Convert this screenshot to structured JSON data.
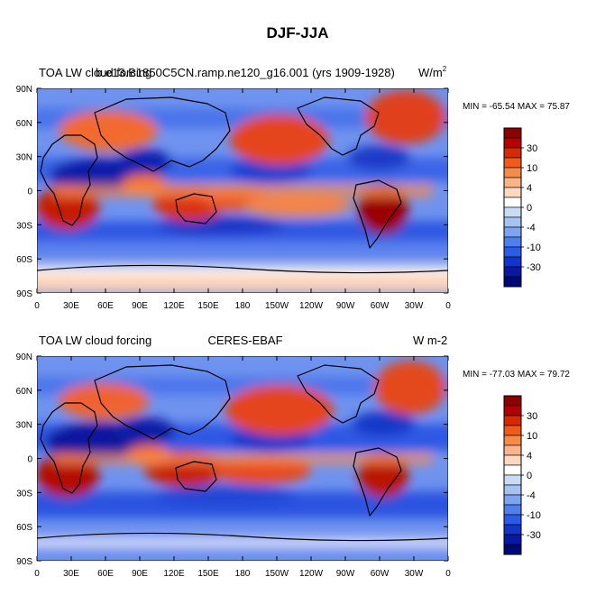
{
  "figure": {
    "title": "DJF-JJA"
  },
  "chart_data": [
    {
      "type": "heatmap",
      "title_left": "TOA LW cloud forcing",
      "title_center": "b.e13.B1850C5CN.ramp.ne120_g16.001 (yrs 1909-1928)",
      "units": "W/m",
      "units_superscript": "2",
      "stats": "MIN = -65.54 MAX =  75.87",
      "x_ticks": [
        "0",
        "30E",
        "60E",
        "90E",
        "120E",
        "150E",
        "180",
        "150W",
        "120W",
        "90W",
        "60W",
        "30W",
        "0"
      ],
      "y_ticks": [
        "90N",
        "60N",
        "30N",
        "0",
        "30S",
        "60S",
        "90S"
      ],
      "xlim": [
        0,
        360
      ],
      "ylim": [
        -90,
        90
      ],
      "colorbar_labels": [
        "30",
        "10",
        "4",
        "0",
        "-4",
        "-10",
        "-30"
      ],
      "colors": [
        "#8b0000",
        "#b40000",
        "#d42a00",
        "#f05a1a",
        "#f58a4a",
        "#fbb38a",
        "#fdd8c0",
        "#ffffff",
        "#c8dcf5",
        "#a5c2f2",
        "#7da4f0",
        "#4f7fee",
        "#2a5ce8",
        "#1235c8",
        "#0818a0",
        "#000878"
      ]
    },
    {
      "type": "heatmap",
      "title_left": "TOA LW cloud forcing",
      "title_center": "CERES-EBAF",
      "units": "W m-2",
      "stats": "MIN = -77.03 MAX =  79.72",
      "x_ticks": [
        "0",
        "30E",
        "60E",
        "90E",
        "120E",
        "150E",
        "180",
        "150W",
        "120W",
        "90W",
        "60W",
        "30W",
        "0"
      ],
      "y_ticks": [
        "90N",
        "60N",
        "30N",
        "0",
        "30S",
        "60S",
        "90S"
      ],
      "xlim": [
        0,
        360
      ],
      "ylim": [
        -90,
        90
      ],
      "colorbar_labels": [
        "30",
        "10",
        "4",
        "0",
        "-4",
        "-10",
        "-30"
      ],
      "colors": [
        "#8b0000",
        "#b40000",
        "#d42a00",
        "#f05a1a",
        "#f58a4a",
        "#fbb38a",
        "#fdd8c0",
        "#ffffff",
        "#c8dcf5",
        "#a5c2f2",
        "#7da4f0",
        "#4f7fee",
        "#2a5ce8",
        "#1235c8",
        "#0818a0",
        "#000878"
      ]
    }
  ]
}
